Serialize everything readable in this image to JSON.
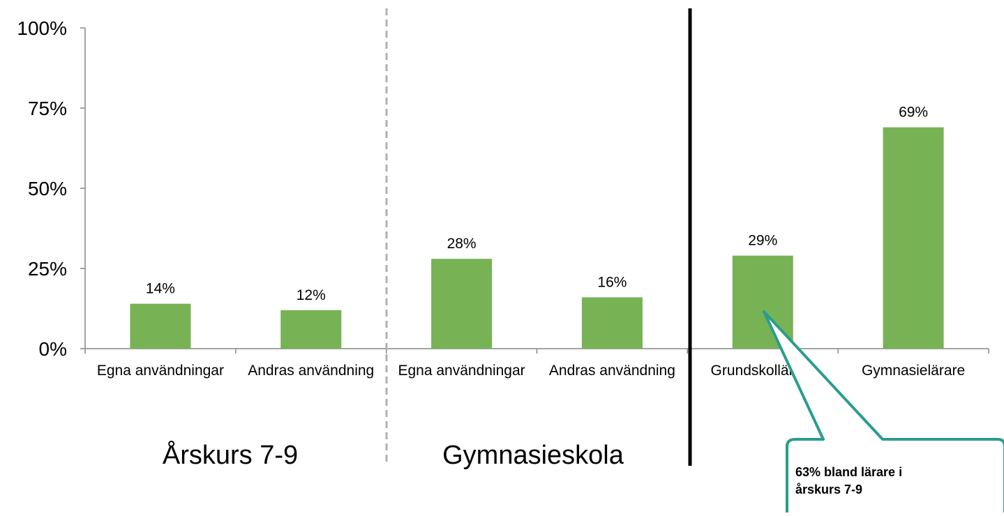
{
  "chart_data": {
    "type": "bar",
    "categories": [
      "Egna användningar",
      "Andras användning",
      "Egna användningar",
      "Andras användning",
      "Grundskollärare",
      "Gymnasielärare"
    ],
    "values": [
      14,
      12,
      28,
      16,
      29,
      69
    ],
    "value_labels": [
      "14%",
      "12%",
      "28%",
      "16%",
      "29%",
      "69%"
    ],
    "ylim": [
      0,
      100
    ],
    "yticks": [
      0,
      25,
      50,
      75,
      100
    ],
    "ytick_labels": [
      "0%",
      "25%",
      "50%",
      "75%",
      "100%"
    ],
    "grid": false,
    "bar_color": "#77b255",
    "groups": [
      {
        "label": "Årskurs 7-9",
        "categories": [
          0,
          1
        ]
      },
      {
        "label": "Gymnasieskola",
        "categories": [
          2,
          3
        ]
      }
    ],
    "annotation": {
      "text_line1": "63% bland lärare i",
      "text_line2": "årskurs 7-9",
      "target_category": 4,
      "border_color": "#2a9d8f"
    }
  }
}
